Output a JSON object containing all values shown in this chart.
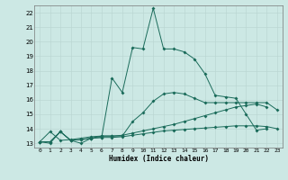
{
  "xlabel": "Humidex (Indice chaleur)",
  "xlim": [
    -0.5,
    23.5
  ],
  "ylim": [
    12.7,
    22.5
  ],
  "xticks": [
    0,
    1,
    2,
    3,
    4,
    5,
    6,
    7,
    8,
    9,
    10,
    11,
    12,
    13,
    14,
    15,
    16,
    17,
    18,
    19,
    20,
    21,
    22,
    23
  ],
  "yticks": [
    13,
    14,
    15,
    16,
    17,
    18,
    19,
    20,
    21,
    22
  ],
  "bg_color": "#cce8e4",
  "grid_color": "#b8d4d0",
  "line_color": "#1a6b5a",
  "s1_x": [
    0,
    1,
    2,
    3,
    4,
    5,
    6,
    7,
    8,
    9,
    10,
    11,
    12,
    13,
    14,
    15,
    16,
    17,
    18,
    19,
    20,
    21,
    22
  ],
  "s1_y": [
    13.1,
    13.0,
    13.8,
    13.2,
    13.0,
    13.35,
    13.4,
    17.5,
    16.5,
    19.6,
    19.5,
    22.3,
    19.5,
    19.5,
    19.3,
    18.8,
    17.8,
    16.3,
    16.2,
    16.1,
    15.0,
    13.9,
    14.0
  ],
  "s2_x": [
    0,
    1,
    2,
    3,
    4,
    5,
    6,
    7,
    8,
    9,
    10,
    11,
    12,
    13,
    14,
    15,
    16,
    17,
    18,
    19,
    20,
    21,
    22,
    23
  ],
  "s2_y": [
    13.1,
    13.8,
    13.2,
    13.25,
    13.35,
    13.45,
    13.5,
    13.5,
    13.5,
    14.5,
    15.1,
    15.9,
    16.4,
    16.5,
    16.4,
    16.1,
    15.8,
    15.8,
    15.8,
    15.8,
    15.8,
    15.8,
    15.8,
    15.3
  ],
  "s3_x": [
    0,
    1,
    2,
    3,
    4,
    5,
    6,
    7,
    8,
    9,
    10,
    11,
    12,
    13,
    14,
    15,
    16,
    17,
    18,
    19,
    20,
    21,
    22,
    23
  ],
  "s3_y": [
    13.1,
    13.1,
    13.8,
    13.2,
    13.25,
    13.35,
    13.5,
    13.5,
    13.55,
    13.7,
    13.85,
    14.0,
    14.15,
    14.3,
    14.5,
    14.7,
    14.9,
    15.1,
    15.3,
    15.5,
    15.6,
    15.7,
    15.5,
    null
  ],
  "s4_x": [
    0,
    1,
    2,
    3,
    4,
    5,
    6,
    7,
    8,
    9,
    10,
    11,
    12,
    13,
    14,
    15,
    16,
    17,
    18,
    19,
    20,
    21,
    22,
    23
  ],
  "s4_y": [
    13.1,
    13.1,
    13.8,
    13.2,
    13.25,
    13.35,
    13.4,
    13.4,
    13.45,
    13.55,
    13.65,
    13.75,
    13.85,
    13.9,
    13.95,
    14.0,
    14.05,
    14.1,
    14.15,
    14.2,
    14.2,
    14.2,
    14.15,
    14.0
  ]
}
